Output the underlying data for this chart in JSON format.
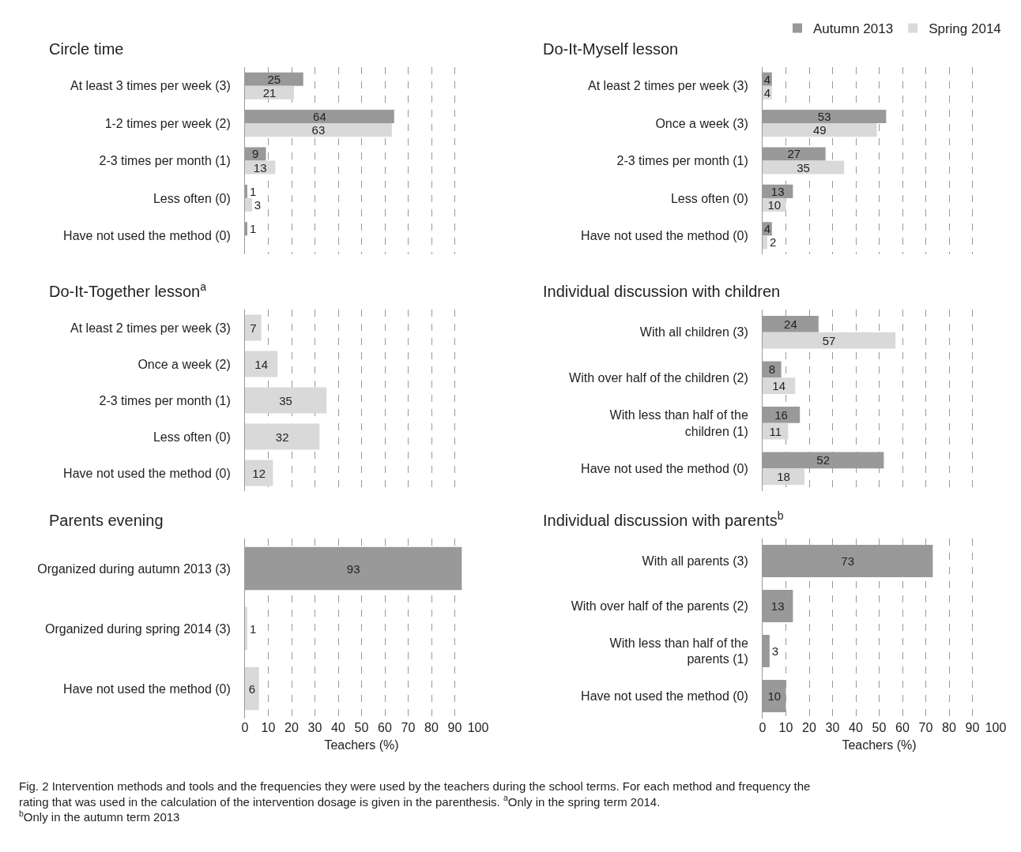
{
  "chart_data": [
    {
      "type": "bar",
      "orientation": "horizontal",
      "title": "Circle time",
      "categories": [
        "At least 3 times per week (3)",
        "1-2 times per week (2)",
        "2-3 times per month (1)",
        "Less often (0)",
        "Have not used the method (0)"
      ],
      "series": [
        {
          "name": "Autumn 2013",
          "color": "#999999",
          "values": [
            25,
            64,
            9,
            1,
            1
          ]
        },
        {
          "name": "Spring 2014",
          "color": "#d9d9d9",
          "values": [
            21,
            63,
            13,
            3,
            null
          ]
        }
      ],
      "xlim": [
        0,
        100
      ],
      "xticks": [
        0,
        10,
        20,
        30,
        40,
        50,
        60,
        70,
        80,
        90,
        100
      ],
      "grid": "x",
      "data_labels": true,
      "tick_labels": "y",
      "legend": "top right"
    },
    {
      "type": "bar",
      "orientation": "horizontal",
      "title": "Do-It-Myself lesson",
      "categories": [
        "At least 2 times per week (3)",
        "Once a week (3)",
        "2-3 times per month (1)",
        "Less often (0)",
        "Have not used the method (0)"
      ],
      "series": [
        {
          "name": "Autumn 2013",
          "color": "#999999",
          "values": [
            4,
            53,
            27,
            13,
            4
          ]
        },
        {
          "name": "Spring 2014",
          "color": "#d9d9d9",
          "values": [
            4,
            49,
            35,
            10,
            2
          ]
        }
      ],
      "xlim": [
        0,
        100
      ],
      "xticks": [
        0,
        10,
        20,
        30,
        40,
        50,
        60,
        70,
        80,
        90,
        100
      ],
      "grid": "x",
      "data_labels": true,
      "tick_labels": "y",
      "legend": "top right"
    },
    {
      "type": "bar",
      "orientation": "horizontal",
      "title": "Do-It-Together lesson$^{a}$",
      "categories": [
        "At least 2 times per week (3)",
        "Once a week (2)",
        "2-3 times per month (1)",
        "Less often (0)",
        "Have not used the method (0)"
      ],
      "values": [
        7,
        14,
        35,
        32,
        12
      ],
      "colors": [
        "#d9d9d9",
        "#d9d9d9",
        "#d9d9d9",
        "#d9d9d9",
        "#d9d9d9"
      ],
      "xlim": [
        0,
        100
      ],
      "xticks": [
        0,
        10,
        20,
        30,
        40,
        50,
        60,
        70,
        80,
        90,
        100
      ],
      "grid": "x",
      "data_labels": true,
      "tick_labels": "y"
    },
    {
      "type": "bar",
      "orientation": "horizontal",
      "title": "Individual discussion with children",
      "categories": [
        "With all children (3)",
        "With over half of the children (2)",
        "With less than half of the children (1)",
        "Have not used the method (0)"
      ],
      "series": [
        {
          "name": "Autumn 2013",
          "color": "#999999",
          "values": [
            24,
            8,
            16,
            52
          ]
        },
        {
          "name": "Spring 2014",
          "color": "#d9d9d9",
          "values": [
            57,
            14,
            11,
            18
          ]
        }
      ],
      "xlim": [
        0,
        100
      ],
      "xticks": [
        0,
        10,
        20,
        30,
        40,
        50,
        60,
        70,
        80,
        90,
        100
      ],
      "grid": "x",
      "data_labels": true,
      "tick_labels": "y",
      "legend": "top right"
    },
    {
      "type": "bar",
      "orientation": "horizontal",
      "title": "Parents evening",
      "categories": [
        "Organized during autumn 2013 (3)",
        "Organized during spring 2014 (3)",
        "Have not used the method (0)"
      ],
      "values": [
        93,
        1,
        6
      ],
      "colors": [
        "#999999",
        "#d9d9d9",
        "#d9d9d9"
      ],
      "xlabel": "Teachers (%)",
      "xlim": [
        0,
        100
      ],
      "xticks": [
        0,
        10,
        20,
        30,
        40,
        50,
        60,
        70,
        80,
        90,
        100
      ],
      "grid": "x",
      "data_labels": true,
      "annotations": [
        "Fig. 2 Intervention methods and tools and the frequencies they were used by the teachers during the school terms. For each method and frequency the rating that was used in the calculation of the intervention dosage is given in the parenthesis. $^{a}$Only in the spring term 2014. $^{b}$Only in the autumn term 2013"
      ]
    },
    {
      "type": "bar",
      "orientation": "horizontal",
      "title": "Individual discussion with parents$^{b}$",
      "categories": [
        "With all parents (3)",
        "With over half of the parents (2)",
        "With less than half of the parents (1)",
        "Have not used the method (0)"
      ],
      "values": [
        73,
        13,
        3,
        10
      ],
      "colors": [
        "#999999",
        "#999999",
        "#999999",
        "#999999"
      ],
      "xlabel": "Teachers (%)",
      "xlim": [
        0,
        100
      ],
      "xticks": [
        0,
        10,
        20,
        30,
        40,
        50,
        60,
        70,
        80,
        90,
        100
      ],
      "grid": "x",
      "data_labels": true
    }
  ]
}
